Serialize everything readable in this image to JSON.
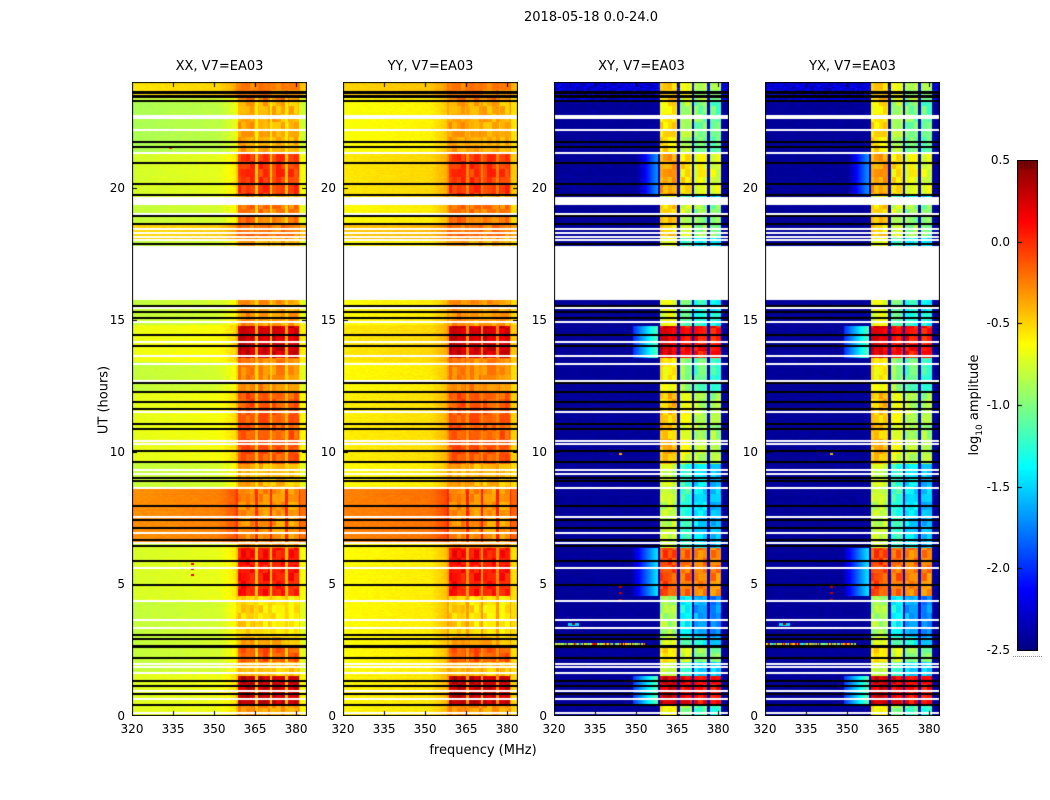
{
  "figure": {
    "title": "2018-05-18 0.0-24.0"
  },
  "chart_data": {
    "type": "heatmap",
    "title": "2018-05-18 0.0-24.0",
    "xlabel": "frequency (MHz)",
    "ylabel": "UT (hours)",
    "x_range": [
      320,
      384
    ],
    "y_range": [
      0,
      24
    ],
    "x_ticks": [
      320,
      335,
      350,
      365,
      380
    ],
    "y_ticks": [
      0,
      5,
      10,
      15,
      20
    ],
    "colormap": "jet",
    "clim": [
      -2.5,
      0.5
    ],
    "colorbar": {
      "tick_labels": [
        "0.5",
        "0.0",
        "-0.5",
        "-1.0",
        "-1.5",
        "-2.0",
        "-2.5"
      ],
      "label_prefix": "log",
      "label_sub": "10",
      "label_suffix": " amplitude"
    },
    "panels": [
      {
        "title": "XX, V7=EA03",
        "kind": "auto",
        "base": -0.8,
        "base_segments": [
          {
            "t0": 6.6,
            "t1": 8.6,
            "v": -0.3
          },
          {
            "t0": 18.0,
            "t1": 18.6,
            "v": -0.52
          },
          {
            "t0": 23.45,
            "t1": 24.01,
            "v": -0.55
          },
          {
            "t0": 21.35,
            "t1": 23.3,
            "v": -0.87
          },
          {
            "t0": 19.65,
            "t1": 21.35,
            "v": -0.75
          },
          {
            "t0": 9.6,
            "t1": 12.3,
            "v": -0.7
          },
          {
            "t0": 13.4,
            "t1": 14.8,
            "v": -0.68
          },
          {
            "t0": 0.0,
            "t1": 1.6,
            "v": -0.72
          },
          {
            "t0": 4.4,
            "t1": 6.4,
            "v": -0.74
          }
        ]
      },
      {
        "title": "YY, V7=EA03",
        "kind": "auto",
        "base": -0.62,
        "base_segments": [
          {
            "t0": 6.6,
            "t1": 8.6,
            "v": -0.26
          },
          {
            "t0": 18.0,
            "t1": 18.6,
            "v": -0.46
          },
          {
            "t0": 23.45,
            "t1": 24.01,
            "v": -0.5
          },
          {
            "t0": 21.35,
            "t1": 23.3,
            "v": -0.64
          },
          {
            "t0": 19.65,
            "t1": 21.35,
            "v": -0.56
          },
          {
            "t0": 9.6,
            "t1": 12.3,
            "v": -0.58
          },
          {
            "t0": 13.4,
            "t1": 14.8,
            "v": -0.56
          },
          {
            "t0": 0.0,
            "t1": 1.6,
            "v": -0.6
          }
        ]
      },
      {
        "title": "XY, V7=EA03",
        "kind": "cross",
        "base": -2.42,
        "base_segments": []
      },
      {
        "title": "YX, V7=EA03",
        "kind": "cross",
        "base": -2.42,
        "base_segments": []
      }
    ],
    "events": [
      {
        "t0": 13.55,
        "t1": 14.78,
        "auto": 0.28,
        "cross": 0.22
      },
      {
        "t0": 0.45,
        "t1": 1.5,
        "auto": 0.3,
        "cross": 0.25
      },
      {
        "t0": 4.55,
        "t1": 6.35,
        "auto": 0.08,
        "cross": -0.1
      },
      {
        "t0": 19.75,
        "t1": 21.35,
        "auto": -0.02,
        "cross": -0.35
      },
      {
        "t0": 9.55,
        "t1": 12.25,
        "auto": -0.12,
        "cross": -0.45
      },
      {
        "t0": 2.05,
        "t1": 2.62,
        "auto": -0.12,
        "cross": -0.5
      },
      {
        "t0": 12.25,
        "t1": 13.55,
        "auto": -0.25,
        "cross": -0.6
      },
      {
        "t0": 18.1,
        "t1": 19.35,
        "auto": -0.2,
        "cross": -0.5
      },
      {
        "t0": 23.3,
        "t1": 24.01,
        "auto": -0.22,
        "cross": -0.45
      },
      {
        "t0": 14.78,
        "t1": 15.75,
        "auto": -0.3,
        "cross": -0.7
      },
      {
        "t0": 3.0,
        "t1": 4.55,
        "auto": -0.5,
        "cross": -0.9
      },
      {
        "t0": 21.35,
        "t1": 23.3,
        "auto": -0.35,
        "cross": -0.55
      },
      {
        "t0": 6.35,
        "t1": 8.6,
        "auto": -0.28,
        "cross": -0.8
      },
      {
        "t0": 8.6,
        "t1": 9.55,
        "auto": -0.38,
        "cross": -0.8
      },
      {
        "t0": 1.5,
        "t1": 2.05,
        "auto": -0.4,
        "cross": -0.8
      },
      {
        "t0": 0.0,
        "t1": 0.45,
        "auto": -0.28,
        "cross": -0.6
      }
    ],
    "event_default": {
      "auto": -0.35,
      "cross": -0.75
    },
    "rfi": {
      "f0": 358.2,
      "f1": 381.4,
      "subbands": [
        [
          358.6,
          365.1
        ],
        [
          365.9,
          370.5
        ],
        [
          371.3,
          376.1
        ],
        [
          376.9,
          380.9
        ]
      ],
      "offsets": {
        "auto": [
          0,
          -0.06,
          -0.12,
          -0.18
        ],
        "cross": [
          0,
          -0.55,
          -0.85,
          -1.0
        ]
      },
      "block_noise": {
        "auto": 0.2,
        "cross": 0.26
      },
      "gap_bump": {
        "auto": 0.22,
        "cross": 0.1
      }
    },
    "white_gaps": [
      [
        15.75,
        17.8
      ],
      [
        19.35,
        19.65
      ]
    ],
    "white_lines": [
      22.72,
      22.62,
      22.18,
      21.3,
      19.02,
      18.45,
      18.3,
      18.15,
      18.02,
      15.45,
      14.9,
      14.15,
      13.62,
      13.32,
      12.68,
      11.5,
      10.42,
      10.3,
      9.32,
      9.15,
      8.62,
      7.55,
      6.92,
      6.55,
      5.62,
      4.35,
      3.62,
      3.32,
      1.95,
      1.85,
      1.62,
      0.95,
      0.65,
      0.12
    ],
    "black_lines": [
      [
        23.62,
        0.1
      ],
      [
        23.45,
        0.12
      ],
      [
        23.28,
        0.07
      ],
      [
        21.72,
        0.07
      ],
      [
        21.55,
        0.07
      ],
      [
        20.92,
        0.07
      ],
      [
        20.15,
        0.07
      ],
      [
        19.72,
        0.07
      ],
      [
        18.92,
        0.07
      ],
      [
        18.62,
        0.07
      ],
      [
        17.85,
        0.09
      ],
      [
        15.52,
        0.07
      ],
      [
        15.28,
        0.07
      ],
      [
        15.05,
        0.07
      ],
      [
        14.42,
        0.07
      ],
      [
        14.02,
        0.07
      ],
      [
        12.62,
        0.07
      ],
      [
        12.28,
        0.07
      ],
      [
        11.88,
        0.07
      ],
      [
        11.62,
        0.07
      ],
      [
        11.05,
        0.07
      ],
      [
        10.88,
        0.07
      ],
      [
        10.05,
        0.07
      ],
      [
        9.62,
        0.07
      ],
      [
        9.02,
        0.07
      ],
      [
        8.88,
        0.07
      ],
      [
        7.95,
        0.07
      ],
      [
        7.42,
        0.07
      ],
      [
        7.12,
        0.07
      ],
      [
        6.65,
        0.07
      ],
      [
        6.42,
        0.07
      ],
      [
        5.85,
        0.07
      ],
      [
        4.95,
        0.07
      ],
      [
        3.05,
        0.07
      ],
      [
        2.92,
        0.07
      ],
      [
        2.62,
        0.12
      ],
      [
        2.2,
        0.07
      ],
      [
        1.32,
        0.07
      ],
      [
        1.15,
        0.07
      ],
      [
        0.82,
        0.07
      ],
      [
        0.42,
        0.07
      ]
    ],
    "speckles": [
      {
        "panels": [
          0
        ],
        "t": 5.35,
        "f": 342,
        "v": 0.2
      },
      {
        "panels": [
          0
        ],
        "t": 5.55,
        "f": 342,
        "v": 0.25
      },
      {
        "panels": [
          0
        ],
        "t": 5.75,
        "f": 342,
        "v": 0.2
      },
      {
        "panels": [
          0
        ],
        "t": 21.5,
        "f": 334,
        "v": -0.1
      },
      {
        "panels": [
          2,
          3
        ],
        "t": 4.4,
        "f": 344,
        "v": 0.3
      },
      {
        "panels": [
          2,
          3
        ],
        "t": 4.65,
        "f": 344,
        "v": 0.3
      },
      {
        "panels": [
          2,
          3
        ],
        "t": 4.9,
        "f": 344,
        "v": 0.3
      },
      {
        "panels": [
          2,
          3
        ],
        "t": 9.9,
        "f": 344,
        "v": -0.4
      },
      {
        "panels": [
          2,
          3
        ],
        "t": 3.5,
        "f": 327,
        "v": 0.4,
        "halo": true
      }
    ],
    "rainbow_line": {
      "panels": [
        2,
        3
      ],
      "t": 2.72,
      "f0": 320.5,
      "f1": 353
    }
  }
}
